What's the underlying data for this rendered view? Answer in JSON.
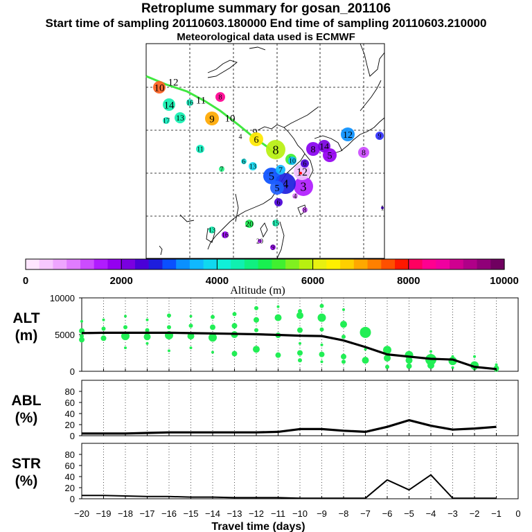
{
  "header": {
    "title": "Retroplume summary for gosan_201106",
    "sampling": "Start time of sampling 20110603.180000     End time of sampling 20110603.210000",
    "met": "Meteorological data used is ECMWF"
  },
  "colorbar": {
    "label": "Altitude (m)",
    "ticks": [
      "0",
      "2000",
      "4000",
      "6000",
      "8000",
      "10000"
    ],
    "colors": [
      "#ffe6ff",
      "#f7c8ff",
      "#eea5ff",
      "#e07cff",
      "#cc4cff",
      "#b01cff",
      "#9400f0",
      "#7a00e0",
      "#4a00d8",
      "#1e1edc",
      "#0a50ff",
      "#0a90ff",
      "#10b8ff",
      "#10d8f0",
      "#10f0d8",
      "#10f0b0",
      "#10f080",
      "#18f050",
      "#40f030",
      "#80f020",
      "#b8f010",
      "#e8f010",
      "#fff000",
      "#ffd000",
      "#ffa800",
      "#ff8000",
      "#ff5000",
      "#ff1800",
      "#ff0060",
      "#ff0090",
      "#f000a0",
      "#d00090",
      "#b00088",
      "#900078",
      "#700060"
    ]
  },
  "map": {
    "markers": [
      {
        "label": "12",
        "color": "#ff5000"
      },
      {
        "label": "10",
        "color": "#ff6020"
      },
      {
        "label": "11",
        "color": "#e0ff10"
      },
      {
        "label": "14",
        "color": "#10f0b0"
      },
      {
        "label": "13",
        "color": "#10f0b0"
      },
      {
        "label": "9",
        "color": "#ffa800"
      },
      {
        "label": "10",
        "color": "#ffe000"
      },
      {
        "label": "8",
        "color": "#ff0090"
      },
      {
        "label": "9",
        "color": "#fff000"
      },
      {
        "label": "6",
        "color": "#ffe800"
      },
      {
        "label": "4",
        "color": "#20f080"
      },
      {
        "label": "8",
        "color": "#b8f010"
      },
      {
        "label": "7",
        "color": "#40f030"
      },
      {
        "label": "11",
        "color": "#10f0c0"
      },
      {
        "label": "8",
        "color": "#8800f0"
      },
      {
        "label": "14",
        "color": "#7a00e0"
      },
      {
        "label": "5",
        "color": "#9400f0"
      },
      {
        "label": "12",
        "color": "#0a90ff"
      },
      {
        "label": "9",
        "color": "#3030ff"
      },
      {
        "label": "8",
        "color": "#cc4cff"
      },
      {
        "label": "3",
        "color": "#b01cff"
      },
      {
        "label": "4",
        "color": "#1e1edc"
      },
      {
        "label": "5",
        "color": "#0a50ff"
      },
      {
        "label": "12",
        "color": "#f0c0ff"
      },
      {
        "label": "6",
        "color": "#10e0e0"
      },
      {
        "label": "13",
        "color": "#10d8f0"
      },
      {
        "label": "7",
        "color": "#10b8ff"
      },
      {
        "label": "10",
        "color": "#10c0ff"
      },
      {
        "label": "5",
        "color": "#1e60ff"
      },
      {
        "label": "4",
        "color": "#e07cff"
      },
      {
        "label": "6",
        "color": "#4a00d8"
      },
      {
        "label": "8",
        "color": "#cc4cff"
      },
      {
        "label": "7",
        "color": "#20f080"
      },
      {
        "label": "1",
        "color": "#4a00d8"
      },
      {
        "label": "13",
        "color": "#10f0b0"
      },
      {
        "label": "20",
        "color": "#18f050"
      },
      {
        "label": "15",
        "color": "#10f0b0"
      },
      {
        "label": "16",
        "color": "#9400f0"
      },
      {
        "label": "20",
        "color": "#b01cff"
      },
      {
        "label": "9",
        "color": "#9400f0"
      },
      {
        "label": "6",
        "color": "#4a00d8"
      },
      {
        "label": "17",
        "color": "#10f0c0"
      },
      {
        "label": "16",
        "color": "#10f0c0"
      }
    ]
  },
  "chart_data": [
    {
      "type": "line",
      "panel": "ALT",
      "ylabel": "ALT (m)",
      "ylabel_line1": "ALT",
      "ylabel_line2": "(m)",
      "ylim": [
        0,
        10000
      ],
      "yticks": [
        "0",
        "5000",
        "10000"
      ],
      "x": [
        -20,
        -19,
        -18,
        -17,
        -16,
        -15,
        -14,
        -13,
        -12,
        -11,
        -10,
        -9,
        -8,
        -7,
        -6,
        -5,
        -4,
        -3,
        -2,
        -1
      ],
      "series": [
        {
          "name": "mean altitude",
          "values": [
            5200,
            5250,
            5250,
            5250,
            5250,
            5200,
            5150,
            5100,
            5050,
            4950,
            4850,
            4800,
            4200,
            3300,
            2300,
            2000,
            1700,
            1600,
            600,
            300
          ]
        }
      ],
      "scatter": [
        [
          [
            -20,
            6800,
            2
          ],
          [
            -20,
            5500,
            4
          ],
          [
            -20,
            4300,
            4
          ],
          [
            -20,
            4800,
            3
          ],
          [
            -19,
            7000,
            2
          ],
          [
            -19,
            5800,
            3
          ],
          [
            -19,
            4500,
            4
          ],
          [
            -19,
            5200,
            2
          ],
          [
            -18,
            7500,
            2
          ],
          [
            -18,
            6000,
            3
          ],
          [
            -18,
            4800,
            6
          ],
          [
            -18,
            3200,
            2
          ],
          [
            -17,
            7000,
            2
          ],
          [
            -17,
            5600,
            3
          ],
          [
            -17,
            4700,
            5
          ],
          [
            -17,
            3800,
            2
          ],
          [
            -16,
            7600,
            3
          ],
          [
            -16,
            6000,
            3
          ],
          [
            -16,
            4900,
            6
          ],
          [
            -16,
            2800,
            2
          ]
        ],
        [
          [
            -15,
            7500,
            2
          ],
          [
            -15,
            6200,
            3
          ],
          [
            -15,
            4800,
            5
          ],
          [
            -15,
            3200,
            2
          ],
          [
            -14,
            7400,
            3
          ],
          [
            -14,
            6000,
            4
          ],
          [
            -14,
            4600,
            6
          ],
          [
            -14,
            2600,
            2
          ],
          [
            -13,
            7800,
            3
          ],
          [
            -13,
            6200,
            4
          ],
          [
            -13,
            5000,
            5
          ],
          [
            -13,
            2400,
            4
          ],
          [
            -12,
            8600,
            3
          ],
          [
            -12,
            7000,
            4
          ],
          [
            -12,
            5600,
            3
          ],
          [
            -12,
            3000,
            5
          ],
          [
            -11,
            8800,
            2
          ],
          [
            -11,
            7300,
            5
          ],
          [
            -11,
            4900,
            4
          ],
          [
            -11,
            2200,
            4
          ]
        ],
        [
          [
            -10,
            8200,
            3
          ],
          [
            -10,
            7600,
            5
          ],
          [
            -10,
            5600,
            4
          ],
          [
            -10,
            3800,
            2
          ],
          [
            -10,
            2500,
            4
          ],
          [
            -10,
            1500,
            3
          ],
          [
            -9,
            8900,
            3
          ],
          [
            -9,
            7300,
            6
          ],
          [
            -9,
            5700,
            3
          ],
          [
            -9,
            3600,
            2
          ],
          [
            -9,
            2300,
            4
          ],
          [
            -9,
            1300,
            2
          ],
          [
            -8,
            8400,
            2
          ],
          [
            -8,
            6400,
            5
          ],
          [
            -8,
            4700,
            3
          ],
          [
            -8,
            2000,
            4
          ],
          [
            -8,
            1300,
            3
          ],
          [
            -7,
            5300,
            8
          ],
          [
            -7,
            3000,
            2
          ],
          [
            -7,
            1500,
            5
          ]
        ],
        [
          [
            -6,
            2900,
            6
          ],
          [
            -6,
            1800,
            5
          ],
          [
            -6,
            600,
            3
          ],
          [
            -5,
            2200,
            6
          ],
          [
            -5,
            1500,
            5
          ],
          [
            -5,
            700,
            4
          ],
          [
            -4,
            2700,
            2
          ],
          [
            -4,
            1600,
            8
          ],
          [
            -4,
            800,
            5
          ],
          [
            -3,
            2000,
            2
          ],
          [
            -3,
            1400,
            6
          ],
          [
            -3,
            500,
            2
          ],
          [
            -2,
            2000,
            2
          ],
          [
            -2,
            800,
            6
          ],
          [
            -2,
            400,
            3
          ],
          [
            -1,
            900,
            2
          ],
          [
            -1,
            400,
            4
          ],
          [
            -1,
            200,
            3
          ]
        ]
      ]
    },
    {
      "type": "line",
      "panel": "ABL",
      "ylabel": "ABL (%)",
      "ylabel_line1": "ABL",
      "ylabel_line2": "(%)",
      "ylim": [
        0,
        100
      ],
      "yticks": [
        "0",
        "20",
        "40",
        "60",
        "80"
      ],
      "x": [
        -20,
        -19,
        -18,
        -17,
        -16,
        -15,
        -14,
        -13,
        -12,
        -11,
        -10,
        -9,
        -8,
        -7,
        -6,
        -5,
        -4,
        -3,
        -2,
        -1
      ],
      "series": [
        {
          "name": "ABL fraction",
          "values": [
            4,
            4,
            4,
            5,
            6,
            6,
            6,
            6,
            6,
            7,
            12,
            12,
            9,
            7,
            16,
            28,
            18,
            11,
            13,
            16
          ]
        }
      ]
    },
    {
      "type": "line",
      "panel": "STR",
      "ylabel": "STR (%)",
      "ylabel_line1": "STR",
      "ylabel_line2": "(%)",
      "ylim": [
        0,
        100
      ],
      "yticks": [
        "0",
        "20",
        "40",
        "60",
        "80"
      ],
      "x": [
        -20,
        -19,
        -18,
        -17,
        -16,
        -15,
        -14,
        -13,
        -12,
        -11,
        -10,
        -9,
        -8,
        -7,
        -6,
        -5,
        -4,
        -3,
        -2,
        -1
      ],
      "xlabel": "Travel time (days)",
      "xticks": [
        "−20",
        "−19",
        "−18",
        "−17",
        "−16",
        "−15",
        "−14",
        "−13",
        "−12",
        "−11",
        "−10",
        "−9",
        "−8",
        "−7",
        "−6",
        "−5",
        "−4",
        "−3",
        "−2",
        "−1",
        "0"
      ],
      "series": [
        {
          "name": "stratospheric fraction",
          "values": [
            6,
            6,
            5,
            4,
            4,
            3,
            3,
            2,
            2,
            2,
            1,
            1,
            1,
            1,
            34,
            16,
            43,
            1,
            1,
            1
          ]
        }
      ]
    }
  ]
}
